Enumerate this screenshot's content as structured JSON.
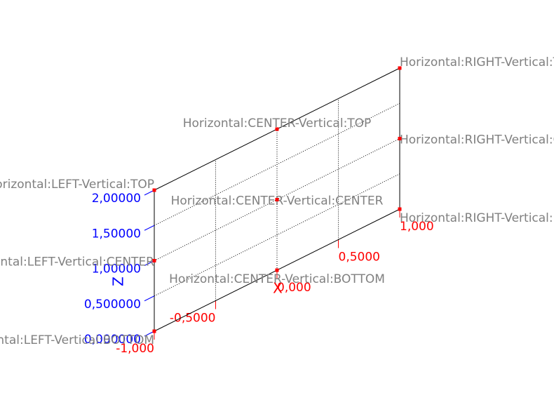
{
  "chart_data": {
    "type": "scatter",
    "xlabel": "X",
    "zlabel": "Z",
    "xlim": [
      -1,
      1
    ],
    "zlim": [
      0,
      2
    ],
    "grid": true,
    "xticks": [
      {
        "value": -1,
        "label": "-1,000"
      },
      {
        "value": -0.5,
        "label": "-0,5000"
      },
      {
        "value": 0,
        "label": "0,000"
      },
      {
        "value": 0.5,
        "label": "0,5000"
      },
      {
        "value": 1,
        "label": "1,000"
      }
    ],
    "zticks": [
      {
        "value": 0,
        "label": "0,000000"
      },
      {
        "value": 0.5,
        "label": "0,500000"
      },
      {
        "value": 1,
        "label": "1,00000"
      },
      {
        "value": 1.5,
        "label": "1,50000"
      },
      {
        "value": 2,
        "label": "2,00000"
      }
    ],
    "x_color": "#ff0000",
    "z_color": "#0000ff",
    "label_color": "#808080",
    "series": [
      {
        "color": "#ff0000",
        "x": [
          -1,
          -1,
          -1,
          0,
          0,
          0,
          1,
          1,
          1
        ],
        "values": [
          0,
          1,
          2,
          0,
          1,
          2,
          0,
          1,
          2
        ],
        "labels": [
          "Horizontal:LEFT-Vertical:BOTTOM",
          "Horizontal:LEFT-Vertical:CENTER",
          "Horizontal:LEFT-Vertical:TOP",
          "Horizontal:CENTER-Vertical:BOTTOM",
          "Horizontal:CENTER-Vertical:CENTER",
          "Horizontal:CENTER-Vertical:TOP",
          "Horizontal:RIGHT-Vertical:BOTTOM",
          "Horizontal:RIGHT-Vertical:CENTER",
          "Horizontal:RIGHT-Vertical:TOP"
        ]
      }
    ]
  }
}
